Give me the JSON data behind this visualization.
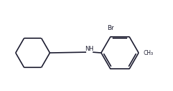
{
  "background_color": "#ffffff",
  "line_color": "#1a1a2e",
  "line_width": 1.2,
  "font_color": "#1a1a2e",
  "br_label": "Br",
  "nh_label": "NH",
  "ch3_label": "CH₃",
  "figsize": [
    2.49,
    1.31
  ],
  "dpi": 100,
  "xlim": [
    -3.5,
    7.0
  ],
  "ylim": [
    -2.5,
    2.8
  ]
}
